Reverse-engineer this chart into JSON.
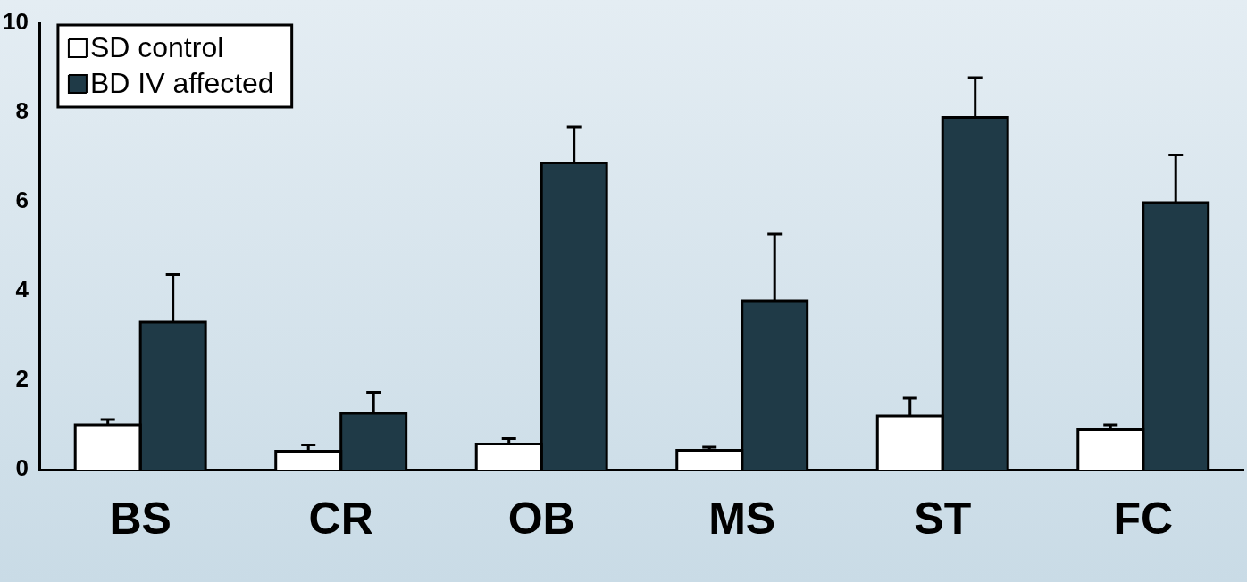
{
  "chart_data": {
    "type": "bar",
    "categories": [
      "BS",
      "CR",
      "OB",
      "MS",
      "ST",
      "FC"
    ],
    "series": [
      {
        "name": "SD control",
        "color": "#ffffff",
        "values": [
          1.0,
          0.41,
          0.57,
          0.43,
          1.2,
          0.89
        ],
        "errors": [
          [
            1.0,
            1.12
          ],
          [
            0.41,
            0.55
          ],
          [
            0.57,
            0.69
          ],
          [
            0.43,
            0.5
          ],
          [
            1.2,
            1.6
          ],
          [
            0.89,
            1.0
          ]
        ]
      },
      {
        "name": "BD IV affected",
        "color": "#1f3a47",
        "values": [
          3.3,
          1.26,
          6.87,
          3.78,
          7.89,
          5.98
        ],
        "errors": [
          [
            3.3,
            4.37
          ],
          [
            1.26,
            1.73
          ],
          [
            6.87,
            7.68
          ],
          [
            3.78,
            5.28
          ],
          [
            7.89,
            8.78
          ],
          [
            5.98,
            7.05
          ]
        ]
      }
    ],
    "ylim": [
      0,
      10
    ],
    "yticks": [
      0,
      2,
      4,
      6,
      8,
      10
    ],
    "grid": false,
    "legend": "top left"
  }
}
